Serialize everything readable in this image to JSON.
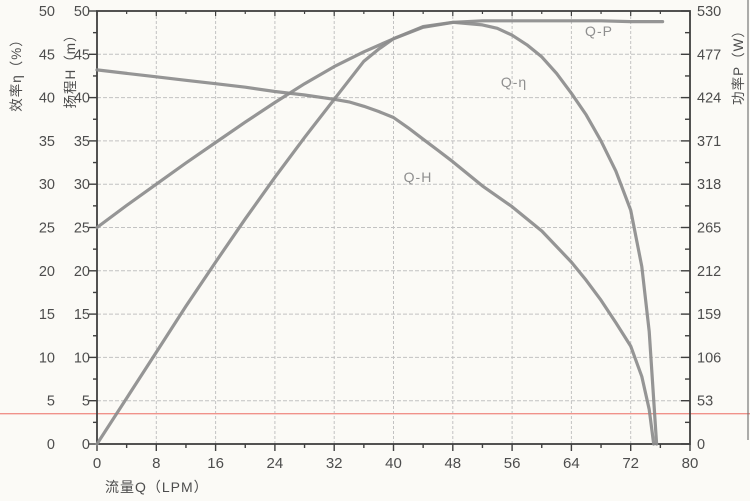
{
  "chart_data": {
    "type": "line",
    "title": "",
    "xlabel": "流量Q（LPM）",
    "x_range": [
      0,
      80
    ],
    "x_major_ticks": [
      0,
      8,
      16,
      24,
      32,
      40,
      48,
      56,
      64,
      72,
      80
    ],
    "x_minor_step": 4,
    "grid": true,
    "legend_position": "inline-curve-labels",
    "axes": {
      "efficiency": {
        "label": "效率η（%）",
        "side": "outer-left",
        "range": [
          0,
          50
        ],
        "ticks": [
          50,
          45,
          40,
          35,
          30,
          25,
          20,
          15,
          10,
          5,
          0
        ],
        "minor_step": 2.5
      },
      "head": {
        "label": "扬程H（m）",
        "side": "inner-left",
        "range": [
          0,
          50
        ],
        "ticks": [
          50,
          45,
          40,
          35,
          30,
          25,
          20,
          15,
          10,
          5,
          0
        ],
        "minor_step": 2.5
      },
      "power": {
        "label": "功率P（W）",
        "side": "right",
        "range": [
          0,
          530
        ],
        "ticks": [
          530,
          477,
          424,
          371,
          318,
          265,
          212,
          159,
          106,
          53,
          0
        ],
        "minor_step": 26.5
      }
    },
    "series": [
      {
        "name": "Q-H",
        "label": "Q-H",
        "axis": "head",
        "units": "m",
        "points": [
          [
            0,
            43.2
          ],
          [
            4,
            42.8
          ],
          [
            8,
            42.4
          ],
          [
            12,
            42.0
          ],
          [
            16,
            41.6
          ],
          [
            20,
            41.2
          ],
          [
            24,
            40.7
          ],
          [
            28,
            40.3
          ],
          [
            32,
            39.8
          ],
          [
            34,
            39.5
          ],
          [
            36,
            39.0
          ],
          [
            38,
            38.4
          ],
          [
            40,
            37.7
          ],
          [
            42,
            36.5
          ],
          [
            44,
            35.2
          ],
          [
            46,
            33.9
          ],
          [
            48,
            32.6
          ],
          [
            52,
            29.8
          ],
          [
            56,
            27.4
          ],
          [
            60,
            24.6
          ],
          [
            64,
            21.0
          ],
          [
            66,
            18.9
          ],
          [
            68,
            16.6
          ],
          [
            70,
            14.0
          ],
          [
            72,
            11.3
          ],
          [
            73.5,
            7.8
          ],
          [
            74.5,
            4.0
          ],
          [
            75.1,
            0
          ]
        ]
      },
      {
        "name": "Q-eta",
        "label": "Q-η",
        "axis": "efficiency",
        "units": "%",
        "points": [
          [
            0,
            0
          ],
          [
            4,
            5.3
          ],
          [
            8,
            10.6
          ],
          [
            12,
            15.9
          ],
          [
            16,
            21.0
          ],
          [
            20,
            26.0
          ],
          [
            24,
            30.8
          ],
          [
            28,
            35.4
          ],
          [
            32,
            39.8
          ],
          [
            36,
            44.2
          ],
          [
            38,
            45.6
          ],
          [
            40,
            46.8
          ],
          [
            44,
            48.2
          ],
          [
            48,
            48.7
          ],
          [
            52,
            48.4
          ],
          [
            54,
            48.0
          ],
          [
            56,
            47.2
          ],
          [
            58,
            46.1
          ],
          [
            60,
            44.7
          ],
          [
            62,
            42.8
          ],
          [
            64,
            40.5
          ],
          [
            66,
            38.0
          ],
          [
            68,
            35.0
          ],
          [
            70,
            31.5
          ],
          [
            72,
            27.0
          ],
          [
            73.5,
            20.5
          ],
          [
            74.5,
            13.0
          ],
          [
            75.5,
            0
          ]
        ]
      },
      {
        "name": "Q-P",
        "label": "Q-P",
        "axis": "power",
        "units": "W",
        "points": [
          [
            0,
            265
          ],
          [
            4,
            292
          ],
          [
            8,
            318
          ],
          [
            12,
            344
          ],
          [
            16,
            369
          ],
          [
            20,
            394
          ],
          [
            24,
            418
          ],
          [
            28,
            441
          ],
          [
            32,
            462
          ],
          [
            36,
            480
          ],
          [
            40,
            496
          ],
          [
            44,
            510
          ],
          [
            48,
            516
          ],
          [
            52,
            518
          ],
          [
            56,
            518
          ],
          [
            60,
            518
          ],
          [
            64,
            518
          ],
          [
            68,
            518
          ],
          [
            72,
            517
          ],
          [
            76.3,
            517
          ]
        ]
      }
    ],
    "reference_line": {
      "left_scale_value": 3.5,
      "color": "#f0928a",
      "full_width": true
    },
    "colors": {
      "curve": "#8c8c8c",
      "grid": "#c2c2c2",
      "axis": "#3f3f3f",
      "text": "#4d4d4d"
    }
  }
}
